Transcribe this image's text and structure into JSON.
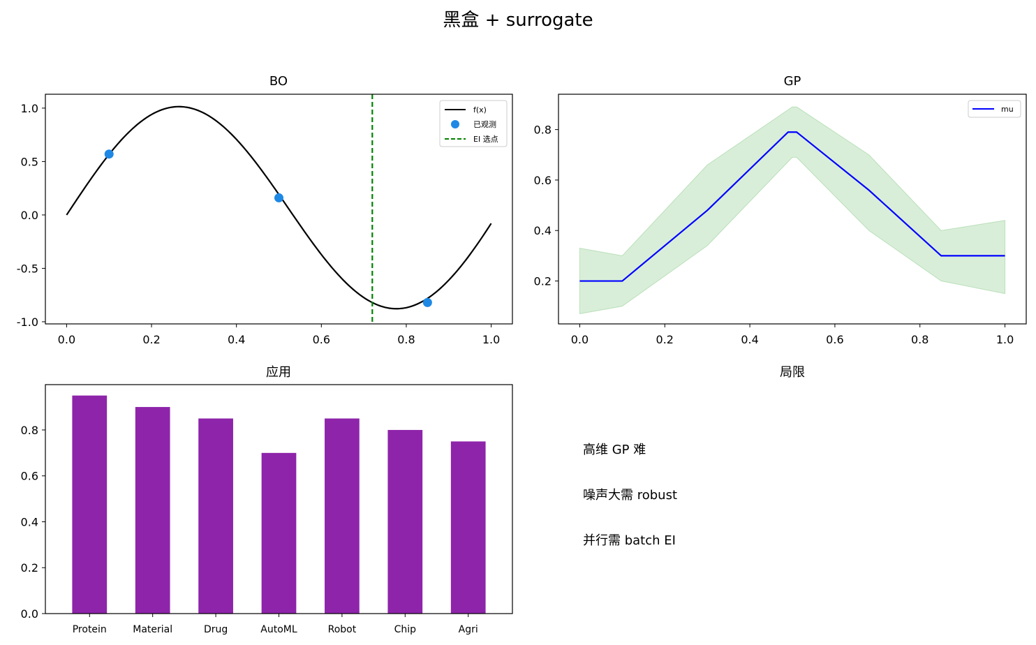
{
  "figure": {
    "title": "黑盒 + surrogate"
  },
  "chart_data": [
    {
      "id": "bo",
      "type": "line",
      "title": "BO",
      "xlim": [
        -0.05,
        1.05
      ],
      "ylim": [
        -1.02,
        1.13
      ],
      "xticks": [
        0.0,
        0.2,
        0.4,
        0.6,
        0.8,
        1.0
      ],
      "xtick_labels": [
        "0.0",
        "0.2",
        "0.4",
        "0.6",
        "0.8",
        "1.0"
      ],
      "yticks": [
        1.0,
        0.5,
        0.0,
        -0.5,
        -1.0
      ],
      "ytick_labels": [
        "1.0",
        "0.5",
        "0.0",
        "-0.5",
        "-1.0"
      ],
      "curve": {
        "name": "f(x)",
        "color": "#000000",
        "function": "sin(6x) + 0.2x^2",
        "x_range": [
          0.0,
          1.0
        ]
      },
      "observed": {
        "name": "已观测",
        "color": "#1e88e5",
        "points": [
          {
            "x": 0.1,
            "y": 0.57
          },
          {
            "x": 0.5,
            "y": 0.16
          },
          {
            "x": 0.85,
            "y": -0.82
          }
        ]
      },
      "ei_choice": {
        "name": "EI 选点",
        "color": "#008000",
        "x": 0.72
      },
      "legend": {
        "position": "top-right",
        "entries": [
          "f(x)",
          "已观测",
          "EI 选点"
        ]
      }
    },
    {
      "id": "gp",
      "type": "line",
      "title": "GP",
      "xlim": [
        -0.05,
        1.05
      ],
      "ylim": [
        0.03,
        0.94
      ],
      "xticks": [
        0.0,
        0.2,
        0.4,
        0.6,
        0.8,
        1.0
      ],
      "xtick_labels": [
        "0.0",
        "0.2",
        "0.4",
        "0.6",
        "0.8",
        "1.0"
      ],
      "yticks": [
        0.8,
        0.6,
        0.4,
        0.2
      ],
      "ytick_labels": [
        "0.8",
        "0.6",
        "0.4",
        "0.2"
      ],
      "series": [
        {
          "name": "mu",
          "color": "#0000ff",
          "x": [
            0.0,
            0.1,
            0.3,
            0.49,
            0.51,
            0.68,
            0.85,
            1.0
          ],
          "y": [
            0.2,
            0.2,
            0.48,
            0.79,
            0.79,
            0.56,
            0.3,
            0.3
          ]
        }
      ],
      "band": {
        "color": "#2ca02c",
        "x": [
          0.0,
          0.1,
          0.3,
          0.5,
          0.51,
          0.68,
          0.85,
          1.0
        ],
        "upper": [
          0.33,
          0.3,
          0.66,
          0.89,
          0.89,
          0.7,
          0.4,
          0.44
        ],
        "lower": [
          0.07,
          0.1,
          0.34,
          0.69,
          0.69,
          0.4,
          0.2,
          0.15
        ]
      },
      "legend": {
        "position": "top-right",
        "entries": [
          "mu"
        ]
      }
    },
    {
      "id": "apps",
      "type": "bar",
      "title": "应用",
      "categories": [
        "Protein",
        "Material",
        "Drug",
        "AutoML",
        "Robot",
        "Chip",
        "Agri"
      ],
      "values": [
        0.95,
        0.9,
        0.85,
        0.7,
        0.85,
        0.8,
        0.75
      ],
      "color": "#8e24aa",
      "ylim": [
        0.0,
        0.9975
      ],
      "yticks": [
        0.0,
        0.2,
        0.4,
        0.6,
        0.8
      ],
      "ytick_labels": [
        "0.0",
        "0.2",
        "0.4",
        "0.6",
        "0.8"
      ]
    }
  ],
  "limitations": {
    "title": "局限",
    "items": [
      "高维 GP 难",
      "噪声大需 robust",
      "并行需 batch EI"
    ]
  }
}
